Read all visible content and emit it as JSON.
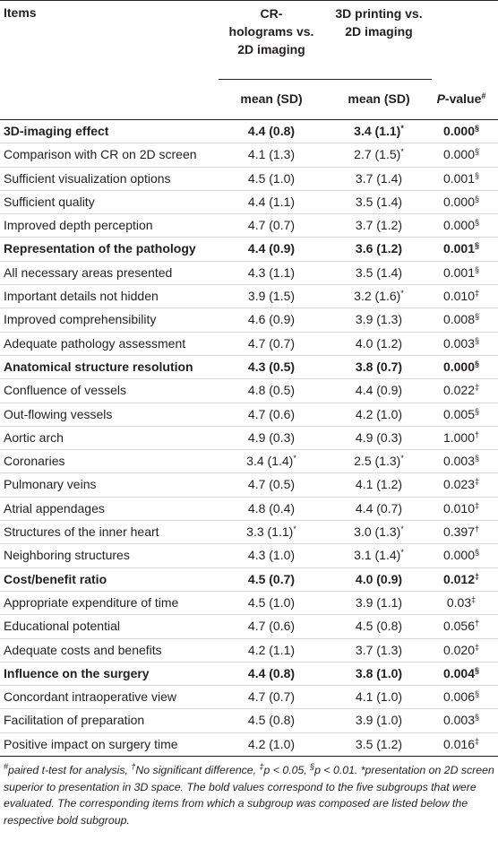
{
  "header": {
    "items": "Items",
    "columns": [
      [
        "CR-",
        "holograms vs.",
        "2D imaging"
      ],
      [
        "3D printing vs.",
        "2D imaging"
      ]
    ],
    "sub": [
      "mean (SD)",
      "mean (SD)"
    ],
    "pvalue": {
      "italic": "P",
      "text": "-value",
      "sup": "#"
    }
  },
  "table": {
    "rows": [
      {
        "bold": true,
        "cells": [
          {
            "text": "3D-imaging effect"
          },
          {
            "text": "4.4 (0.8)"
          },
          {
            "text": "3.4 (1.1)",
            "sup": "*"
          },
          {
            "text": "0.000",
            "sup": "§"
          }
        ]
      },
      {
        "cells": [
          {
            "text": "Comparison with CR on 2D screen"
          },
          {
            "text": "4.1 (1.3)"
          },
          {
            "text": "2.7 (1.5)",
            "sup": "*"
          },
          {
            "text": "0.000",
            "sup": "§"
          }
        ]
      },
      {
        "cells": [
          {
            "text": "Sufficient visualization options"
          },
          {
            "text": "4.5 (1.0)"
          },
          {
            "text": "3.7 (1.4)"
          },
          {
            "text": "0.001",
            "sup": "§"
          }
        ]
      },
      {
        "cells": [
          {
            "text": "Sufficient quality"
          },
          {
            "text": "4.4 (1.1)"
          },
          {
            "text": "3.5 (1.4)"
          },
          {
            "text": "0.000",
            "sup": "§"
          }
        ]
      },
      {
        "cells": [
          {
            "text": "Improved depth perception"
          },
          {
            "text": "4.7 (0.7)"
          },
          {
            "text": "3.7 (1.2)"
          },
          {
            "text": "0.000",
            "sup": "§"
          }
        ]
      },
      {
        "bold": true,
        "cells": [
          {
            "text": "Representation of the pathology"
          },
          {
            "text": "4.4 (0.9)"
          },
          {
            "text": "3.6 (1.2)"
          },
          {
            "text": "0.001",
            "sup": "§"
          }
        ]
      },
      {
        "cells": [
          {
            "text": "All necessary areas presented"
          },
          {
            "text": "4.3 (1.1)"
          },
          {
            "text": "3.5 (1.4)"
          },
          {
            "text": "0.001",
            "sup": "§"
          }
        ]
      },
      {
        "cells": [
          {
            "text": "Important details not hidden"
          },
          {
            "text": "3.9 (1.5)"
          },
          {
            "text": "3.2 (1.6)",
            "sup": "*"
          },
          {
            "text": "0.010",
            "sup": "‡"
          }
        ]
      },
      {
        "cells": [
          {
            "text": "Improved comprehensibility"
          },
          {
            "text": "4.6 (0.9)"
          },
          {
            "text": "3.9 (1.3)"
          },
          {
            "text": "0.008",
            "sup": "§"
          }
        ]
      },
      {
        "cells": [
          {
            "text": "Adequate pathology assessment"
          },
          {
            "text": "4.7 (0.7)"
          },
          {
            "text": "4.0 (1.2)"
          },
          {
            "text": "0.003",
            "sup": "§"
          }
        ]
      },
      {
        "bold": true,
        "cells": [
          {
            "text": "Anatomical structure resolution"
          },
          {
            "text": "4.3 (0.5)"
          },
          {
            "text": "3.8 (0.7)"
          },
          {
            "text": "0.000",
            "sup": "§"
          }
        ]
      },
      {
        "cells": [
          {
            "text": "Confluence of vessels"
          },
          {
            "text": "4.8 (0.5)"
          },
          {
            "text": "4.4 (0.9)"
          },
          {
            "text": "0.022",
            "sup": "‡"
          }
        ]
      },
      {
        "cells": [
          {
            "text": "Out-flowing vessels"
          },
          {
            "text": "4.7 (0.6)"
          },
          {
            "text": "4.2 (1.0)"
          },
          {
            "text": "0.005",
            "sup": "§"
          }
        ]
      },
      {
        "cells": [
          {
            "text": "Aortic arch"
          },
          {
            "text": "4.9 (0.3)"
          },
          {
            "text": "4.9 (0.3)"
          },
          {
            "text": "1.000",
            "sup": "†"
          }
        ]
      },
      {
        "cells": [
          {
            "text": "Coronaries"
          },
          {
            "text": "3.4 (1.4)",
            "sup": "*"
          },
          {
            "text": "2.5 (1.3)",
            "sup": "*"
          },
          {
            "text": "0.003",
            "sup": "§"
          }
        ]
      },
      {
        "cells": [
          {
            "text": "Pulmonary veins"
          },
          {
            "text": "4.7 (0.5)"
          },
          {
            "text": "4.1 (1.2)"
          },
          {
            "text": "0.023",
            "sup": "‡"
          }
        ]
      },
      {
        "cells": [
          {
            "text": "Atrial appendages"
          },
          {
            "text": "4.8 (0.4)"
          },
          {
            "text": "4.4 (0.7)"
          },
          {
            "text": "0.010",
            "sup": "‡"
          }
        ]
      },
      {
        "cells": [
          {
            "text": "Structures of the inner heart"
          },
          {
            "text": "3.3 (1.1)",
            "sup": "*"
          },
          {
            "text": "3.0 (1.3)",
            "sup": "*"
          },
          {
            "text": "0.397",
            "sup": "†"
          }
        ]
      },
      {
        "cells": [
          {
            "text": "Neighboring structures"
          },
          {
            "text": "4.3 (1.0)"
          },
          {
            "text": "3.1 (1.4)",
            "sup": "*"
          },
          {
            "text": "0.000",
            "sup": "§"
          }
        ]
      },
      {
        "bold": true,
        "cells": [
          {
            "text": "Cost/benefit ratio"
          },
          {
            "text": "4.5 (0.7)"
          },
          {
            "text": "4.0 (0.9)"
          },
          {
            "text": "0.012",
            "sup": "‡"
          }
        ]
      },
      {
        "cells": [
          {
            "text": "Appropriate expenditure of time"
          },
          {
            "text": "4.5 (1.0)"
          },
          {
            "text": "3.9 (1.1)"
          },
          {
            "text": "0.03",
            "sup": "‡"
          }
        ]
      },
      {
        "cells": [
          {
            "text": "Educational potential"
          },
          {
            "text": "4.7 (0.6)"
          },
          {
            "text": "4.5 (0.8)"
          },
          {
            "text": "0.056",
            "sup": "†"
          }
        ]
      },
      {
        "cells": [
          {
            "text": "Adequate costs and benefits"
          },
          {
            "text": "4.2 (1.1)"
          },
          {
            "text": "3.7 (1.3)"
          },
          {
            "text": "0.020",
            "sup": "‡"
          }
        ]
      },
      {
        "bold": true,
        "cells": [
          {
            "text": "Influence on the surgery"
          },
          {
            "text": "4.4 (0.8)"
          },
          {
            "text": "3.8 (1.0)"
          },
          {
            "text": "0.004",
            "sup": "§"
          }
        ]
      },
      {
        "cells": [
          {
            "text": "Concordant intraoperative view"
          },
          {
            "text": "4.7 (0.7)"
          },
          {
            "text": "4.1 (1.0)"
          },
          {
            "text": "0.006",
            "sup": "§"
          }
        ]
      },
      {
        "cells": [
          {
            "text": "Facilitation of preparation"
          },
          {
            "text": "4.5 (0.8)"
          },
          {
            "text": "3.9 (1.0)"
          },
          {
            "text": "0.003",
            "sup": "§"
          }
        ]
      },
      {
        "cells": [
          {
            "text": "Positive impact on surgery time"
          },
          {
            "text": "4.2 (1.0)"
          },
          {
            "text": "3.5 (1.2)"
          },
          {
            "text": "0.016",
            "sup": "‡"
          }
        ]
      }
    ]
  },
  "footnote": [
    {
      "text": "#",
      "sup": true
    },
    {
      "text": "paired t-test for analysis, "
    },
    {
      "text": "†",
      "sup": true
    },
    {
      "text": "No significant difference, "
    },
    {
      "text": "‡",
      "sup": true
    },
    {
      "text": "p < 0.05, "
    },
    {
      "text": "§",
      "sup": true
    },
    {
      "text": "p < 0.01. *presentation on 2D screen superior to presentation in 3D space. The bold values correspond to the five subgroups that were evaluated. The corresponding items from which a subgroup was composed are listed below the respective bold subgroup."
    }
  ]
}
